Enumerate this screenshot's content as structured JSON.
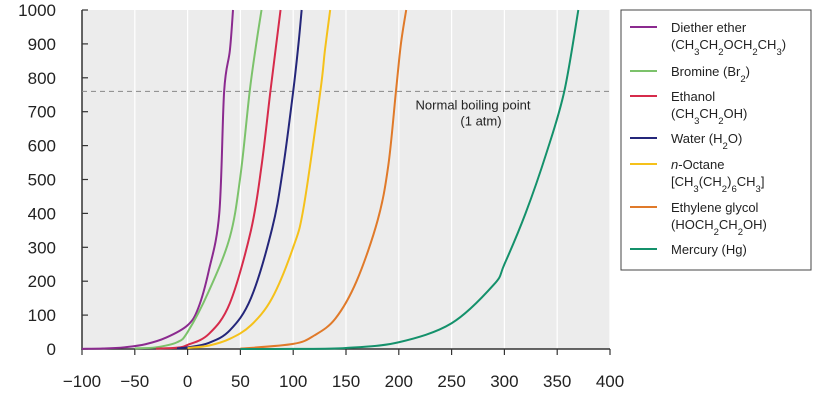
{
  "chart_data": {
    "type": "line",
    "title": "",
    "xlabel": "",
    "ylabel": "",
    "xlim": [
      -100,
      400
    ],
    "ylim": [
      0,
      1000
    ],
    "x_ticks": [
      -100,
      -50,
      0,
      50,
      100,
      150,
      200,
      250,
      300,
      350,
      400
    ],
    "x_tick_labels": [
      "−100",
      "−50",
      "0",
      "50",
      "100",
      "150",
      "200",
      "250",
      "300",
      "350",
      "400"
    ],
    "y_ticks": [
      0,
      100,
      200,
      300,
      400,
      500,
      600,
      700,
      800,
      900,
      1000
    ],
    "grid": "vertical",
    "plot_background": "#ececec",
    "legend_position": "right",
    "reference_line": {
      "y": 760,
      "label_line1": "Normal boiling point",
      "label_line2": "(1 atm)",
      "color": "#888888"
    },
    "series": [
      {
        "name_parts": [
          [
            "Diether ether",
            ""
          ],
          [
            "(CH",
            ""
          ],
          [
            "3",
            "sub"
          ],
          [
            "CH",
            ""
          ],
          [
            "2",
            "sub"
          ],
          [
            "OCH",
            ""
          ],
          [
            "2",
            "sub"
          ],
          [
            "CH",
            ""
          ],
          [
            "3",
            "sub"
          ],
          [
            ")",
            ""
          ]
        ],
        "legend_lines": [
          [
            [
              "Diether ether",
              ""
            ]
          ],
          [
            [
              "(CH",
              ""
            ],
            [
              "3",
              "sub"
            ],
            [
              "CH",
              ""
            ],
            [
              "2",
              "sub"
            ],
            [
              "OCH",
              ""
            ],
            [
              "2",
              "sub"
            ],
            [
              "CH",
              ""
            ],
            [
              "3",
              "sub"
            ],
            [
              ")",
              ""
            ]
          ]
        ],
        "color": "#8b2a8f",
        "x": [
          -100,
          -80,
          -60,
          -40,
          -20,
          0,
          10,
          20,
          30,
          34.6,
          40,
          43
        ],
        "y": [
          0.5,
          1.5,
          5,
          14,
          34,
          70,
          120,
          230,
          400,
          760,
          880,
          1000
        ]
      },
      {
        "legend_lines": [
          [
            [
              "Bromine (Br",
              ""
            ],
            [
              "2",
              "sub"
            ],
            [
              ")",
              ""
            ]
          ]
        ],
        "color": "#7cc26b",
        "x": [
          -50,
          -30,
          -10,
          0,
          20,
          40,
          50,
          58.8,
          65,
          70
        ],
        "y": [
          2,
          5,
          20,
          50,
          170,
          330,
          510,
          760,
          900,
          1000
        ]
      },
      {
        "legend_lines": [
          [
            [
              "Ethanol",
              ""
            ]
          ],
          [
            [
              "(CH",
              ""
            ],
            [
              "3",
              "sub"
            ],
            [
              "CH",
              ""
            ],
            [
              "2",
              "sub"
            ],
            [
              "OH)",
              ""
            ]
          ]
        ],
        "color": "#d62b4b",
        "x": [
          -30,
          -10,
          0,
          20,
          40,
          60,
          70,
          78.4,
          84,
          88
        ],
        "y": [
          1,
          4,
          12,
          44,
          135,
          350,
          540,
          760,
          900,
          1000
        ]
      },
      {
        "legend_lines": [
          [
            [
              "Water (H",
              ""
            ],
            [
              "2",
              "sub"
            ],
            [
              "O)",
              ""
            ]
          ]
        ],
        "color": "#24267a",
        "x": [
          -10,
          0,
          20,
          40,
          60,
          80,
          90,
          100,
          105,
          108
        ],
        "y": [
          2,
          5,
          18,
          55,
          150,
          355,
          525,
          760,
          900,
          1000
        ]
      },
      {
        "legend_lines": [
          [
            [
              "n",
              "italic"
            ],
            [
              "-Octane",
              ""
            ]
          ],
          [
            [
              "[CH",
              ""
            ],
            [
              "3",
              "sub"
            ],
            [
              "(CH",
              ""
            ],
            [
              "2",
              "sub"
            ],
            [
              ")",
              ""
            ],
            [
              "6",
              "sub"
            ],
            [
              "CH",
              ""
            ],
            [
              "3",
              "sub"
            ],
            [
              "]",
              ""
            ]
          ]
        ],
        "color": "#f5c11a",
        "x": [
          0,
          20,
          40,
          60,
          80,
          100,
          110,
          125.7,
          130,
          135
        ],
        "y": [
          3,
          10,
          30,
          70,
          150,
          300,
          420,
          760,
          880,
          1000
        ]
      },
      {
        "legend_lines": [
          [
            [
              "Ethylene glycol",
              ""
            ]
          ],
          [
            [
              "(HOCH",
              ""
            ],
            [
              "2",
              "sub"
            ],
            [
              "CH",
              ""
            ],
            [
              "2",
              "sub"
            ],
            [
              "OH)",
              ""
            ]
          ]
        ],
        "color": "#e07a2a",
        "x": [
          50,
          100,
          120,
          140,
          160,
          180,
          190,
          197.3,
          202,
          207
        ],
        "y": [
          1,
          15,
          40,
          90,
          200,
          380,
          540,
          760,
          900,
          1000
        ]
      },
      {
        "legend_lines": [
          [
            [
              "Mercury (Hg)",
              ""
            ]
          ]
        ],
        "color": "#14916b",
        "x": [
          50,
          100,
          150,
          200,
          250,
          290,
          300,
          320,
          340,
          356.7,
          370
        ],
        "y": [
          0.1,
          0.3,
          3,
          20,
          76,
          190,
          250,
          400,
          580,
          760,
          1000
        ]
      }
    ]
  }
}
